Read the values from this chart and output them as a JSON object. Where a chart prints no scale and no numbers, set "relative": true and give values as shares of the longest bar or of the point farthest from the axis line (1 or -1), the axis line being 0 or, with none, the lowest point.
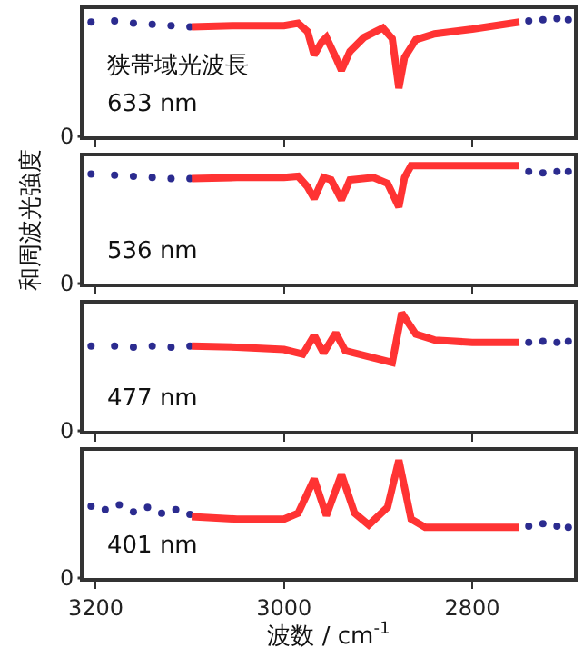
{
  "chart_data": [
    {
      "type": "line",
      "relative": true,
      "xlim": [
        3213,
        2692
      ],
      "xticks": [
        3200,
        3000,
        2800
      ],
      "tick_labels": "y",
      "annotations": [
        "狭帯域光波長",
        "633 nm",
        "0"
      ],
      "series": [
        {
          "type": "scatter",
          "marker": "circle",
          "color": "#2b2b8f",
          "x": [
            3205,
            3180,
            3160,
            3140,
            3120,
            3100,
            2740,
            2725,
            2710,
            2698
          ],
          "values": [
            0.97,
            0.98,
            0.96,
            0.95,
            0.94,
            0.93,
            0.98,
            0.99,
            1.0,
            0.99
          ]
        },
        {
          "color": "#ff3333",
          "x": [
            3098,
            3050,
            3000,
            2985,
            2975,
            2968,
            2960,
            2955,
            2945,
            2939,
            2930,
            2915,
            2895,
            2885,
            2878,
            2872,
            2860,
            2840,
            2800,
            2750
          ],
          "values": [
            0.93,
            0.94,
            0.94,
            0.96,
            0.89,
            0.69,
            0.8,
            0.84,
            0.67,
            0.56,
            0.72,
            0.84,
            0.92,
            0.83,
            0.41,
            0.67,
            0.82,
            0.87,
            0.91,
            0.97
          ]
        }
      ]
    },
    {
      "type": "line",
      "relative": true,
      "xlim": [
        3213,
        2692
      ],
      "xticks": [
        3200,
        3000,
        2800
      ],
      "tick_labels": "y",
      "ylabel": "和周波光強度",
      "annotations": [
        "536 nm",
        "0"
      ],
      "series": [
        {
          "type": "scatter",
          "marker": "circle",
          "color": "#2b2b8f",
          "x": [
            3205,
            3180,
            3160,
            3140,
            3120,
            3100,
            2740,
            2725,
            2710,
            2698
          ],
          "values": [
            0.93,
            0.92,
            0.91,
            0.9,
            0.89,
            0.89,
            0.95,
            0.94,
            0.95,
            0.95
          ]
        },
        {
          "color": "#ff3333",
          "x": [
            3098,
            3050,
            3000,
            2985,
            2975,
            2968,
            2958,
            2950,
            2939,
            2930,
            2905,
            2890,
            2878,
            2872,
            2865,
            2800,
            2750
          ],
          "values": [
            0.89,
            0.9,
            0.9,
            0.91,
            0.82,
            0.72,
            0.9,
            0.88,
            0.71,
            0.88,
            0.9,
            0.85,
            0.65,
            0.9,
            1.0,
            1.0,
            1.0
          ]
        }
      ]
    },
    {
      "type": "line",
      "relative": true,
      "xlim": [
        3213,
        2692
      ],
      "xticks": [
        3200,
        3000,
        2800
      ],
      "tick_labels": "y",
      "annotations": [
        "477 nm",
        "0"
      ],
      "series": [
        {
          "type": "scatter",
          "marker": "circle",
          "color": "#2b2b8f",
          "x": [
            3205,
            3180,
            3160,
            3140,
            3120,
            3100,
            2740,
            2725,
            2710,
            2698
          ],
          "values": [
            0.72,
            0.72,
            0.71,
            0.72,
            0.71,
            0.72,
            0.75,
            0.76,
            0.75,
            0.76
          ]
        },
        {
          "color": "#ff3333",
          "x": [
            3098,
            3050,
            3000,
            2980,
            2968,
            2958,
            2945,
            2935,
            2910,
            2885,
            2875,
            2860,
            2840,
            2800,
            2750
          ],
          "values": [
            0.72,
            0.71,
            0.69,
            0.65,
            0.81,
            0.66,
            0.83,
            0.68,
            0.63,
            0.58,
            1.0,
            0.82,
            0.77,
            0.75,
            0.75
          ]
        }
      ]
    },
    {
      "type": "line",
      "relative": true,
      "xlim": [
        3213,
        2692
      ],
      "xticks": [
        3200,
        3000,
        2800
      ],
      "xlabel": "波数 / cm$^{-1}$",
      "annotations": [
        "401 nm",
        "0"
      ],
      "series": [
        {
          "type": "scatter",
          "marker": "circle",
          "color": "#2b2b8f",
          "x": [
            3205,
            3190,
            3175,
            3160,
            3145,
            3130,
            3115,
            3100,
            2740,
            2725,
            2710,
            2698
          ],
          "values": [
            0.61,
            0.58,
            0.62,
            0.56,
            0.6,
            0.55,
            0.58,
            0.54,
            0.44,
            0.46,
            0.44,
            0.43
          ]
        },
        {
          "color": "#ff3333",
          "x": [
            3098,
            3050,
            3000,
            2985,
            2968,
            2955,
            2939,
            2925,
            2910,
            2890,
            2878,
            2865,
            2850,
            2800,
            2750
          ],
          "values": [
            0.52,
            0.5,
            0.5,
            0.55,
            0.84,
            0.53,
            0.88,
            0.55,
            0.45,
            0.6,
            1.0,
            0.5,
            0.43,
            0.43,
            0.43
          ]
        }
      ]
    }
  ]
}
